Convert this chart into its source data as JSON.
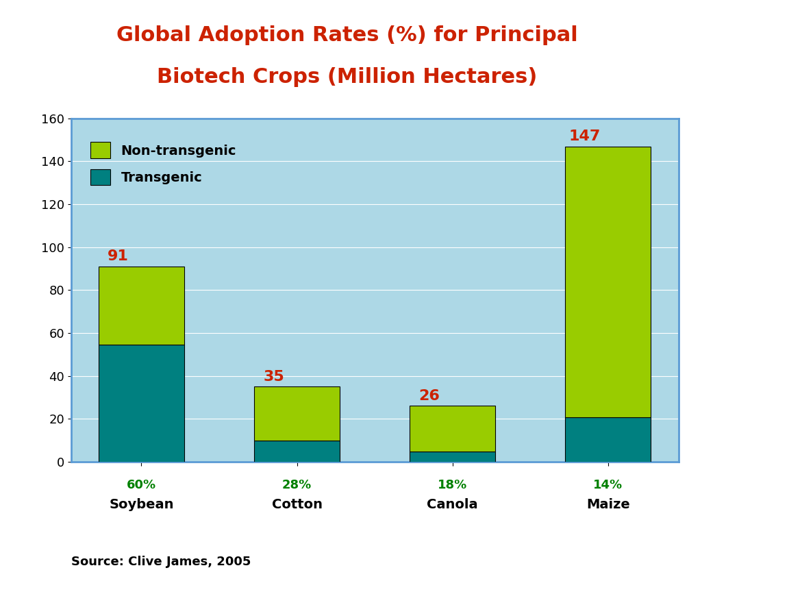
{
  "categories": [
    "Soybean",
    "Cotton",
    "Canola",
    "Maize"
  ],
  "transgenic_values": [
    54.6,
    9.8,
    4.68,
    20.58
  ],
  "non_transgenic_values": [
    36.4,
    25.2,
    21.32,
    126.42
  ],
  "totals": [
    91,
    35,
    26,
    147
  ],
  "transgenic_pct": [
    "60%",
    "28%",
    "18%",
    "14%"
  ],
  "transgenic_color": "#008080",
  "non_transgenic_color": "#99CC00",
  "title_line1": "Global Adoption Rates (%) for Principal",
  "title_line2": "Biotech Crops (Million Hectares)",
  "title_color": "#CC2200",
  "bg_plot_color": "#ADD8E6",
  "bg_figure_color": "#FFFFFF",
  "ylim": [
    0,
    160
  ],
  "yticks": [
    0,
    20,
    40,
    60,
    80,
    100,
    120,
    140,
    160
  ],
  "total_label_color": "#CC2200",
  "pct_label_color": "#008000",
  "source_text": "Source: Clive James, 2005",
  "legend_nontransgenic": "Non-transgenic",
  "legend_transgenic": "Transgenic",
  "total_fontsize": 16,
  "pct_fontsize": 13,
  "cat_fontsize": 14,
  "tick_fontsize": 13,
  "title_fontsize": 22,
  "source_fontsize": 13,
  "legend_fontsize": 14,
  "bar_width": 0.55
}
